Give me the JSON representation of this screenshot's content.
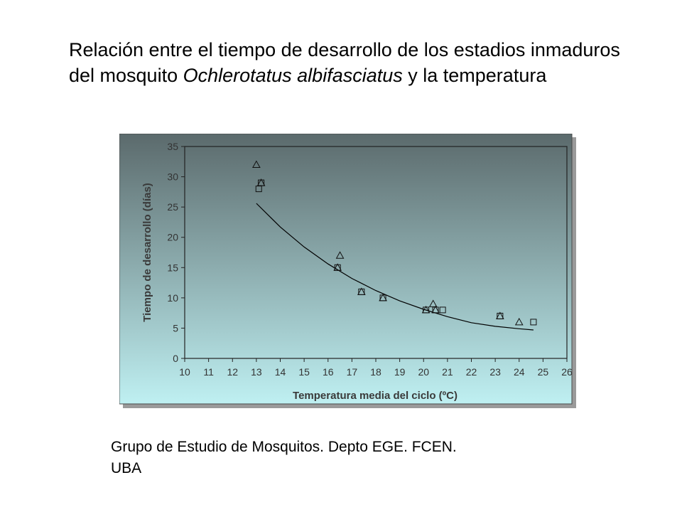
{
  "title": {
    "part1": "Relación entre el tiempo de desarrollo de los estadios inmaduros del mosquito ",
    "species": "Ochlerotatus albifasciatus",
    "part2": " y la temperatura"
  },
  "credit": {
    "line1": "Grupo de Estudio de Mosquitos. Depto EGE. FCEN.",
    "line2": "UBA"
  },
  "colors": {
    "panel_top": "#5b6a6c",
    "panel_bottom": "#bff0f2",
    "curve": "#000000"
  },
  "chart_data": {
    "type": "scatter",
    "xlabel": "Temperatura media del ciclo (ºC)",
    "ylabel": "Tiempo de desarrollo (días)",
    "xlim": [
      10,
      26
    ],
    "ylim": [
      0,
      35
    ],
    "xticks": [
      10,
      11,
      12,
      13,
      14,
      15,
      16,
      17,
      18,
      19,
      20,
      21,
      22,
      23,
      24,
      25,
      26
    ],
    "yticks": [
      0,
      5,
      10,
      15,
      20,
      25,
      30,
      35
    ],
    "grid": false,
    "series": [
      {
        "marker": "triangle",
        "points": [
          [
            13.0,
            32
          ],
          [
            13.2,
            29
          ],
          [
            16.4,
            15
          ],
          [
            16.5,
            17
          ],
          [
            17.4,
            11
          ],
          [
            18.3,
            10
          ],
          [
            20.1,
            8
          ],
          [
            20.4,
            9
          ],
          [
            20.5,
            8
          ],
          [
            23.2,
            7
          ],
          [
            24.0,
            6
          ]
        ]
      },
      {
        "marker": "square",
        "points": [
          [
            13.1,
            28
          ],
          [
            13.2,
            29
          ],
          [
            16.4,
            15
          ],
          [
            17.4,
            11
          ],
          [
            18.3,
            10
          ],
          [
            20.1,
            8
          ],
          [
            20.5,
            8
          ],
          [
            20.8,
            8
          ],
          [
            23.2,
            7
          ],
          [
            24.6,
            6
          ]
        ]
      }
    ],
    "fit_curve": {
      "type": "exponential",
      "x_range": [
        13.0,
        24.6
      ],
      "points": [
        [
          13.0,
          25.6
        ],
        [
          14,
          21.7
        ],
        [
          15,
          18.4
        ],
        [
          16,
          15.6
        ],
        [
          17,
          13.2
        ],
        [
          18,
          11.2
        ],
        [
          19,
          9.5
        ],
        [
          20,
          8.1
        ],
        [
          21,
          6.9
        ],
        [
          22,
          5.9
        ],
        [
          23,
          5.3
        ],
        [
          24,
          4.9
        ],
        [
          24.6,
          4.7
        ]
      ]
    }
  }
}
